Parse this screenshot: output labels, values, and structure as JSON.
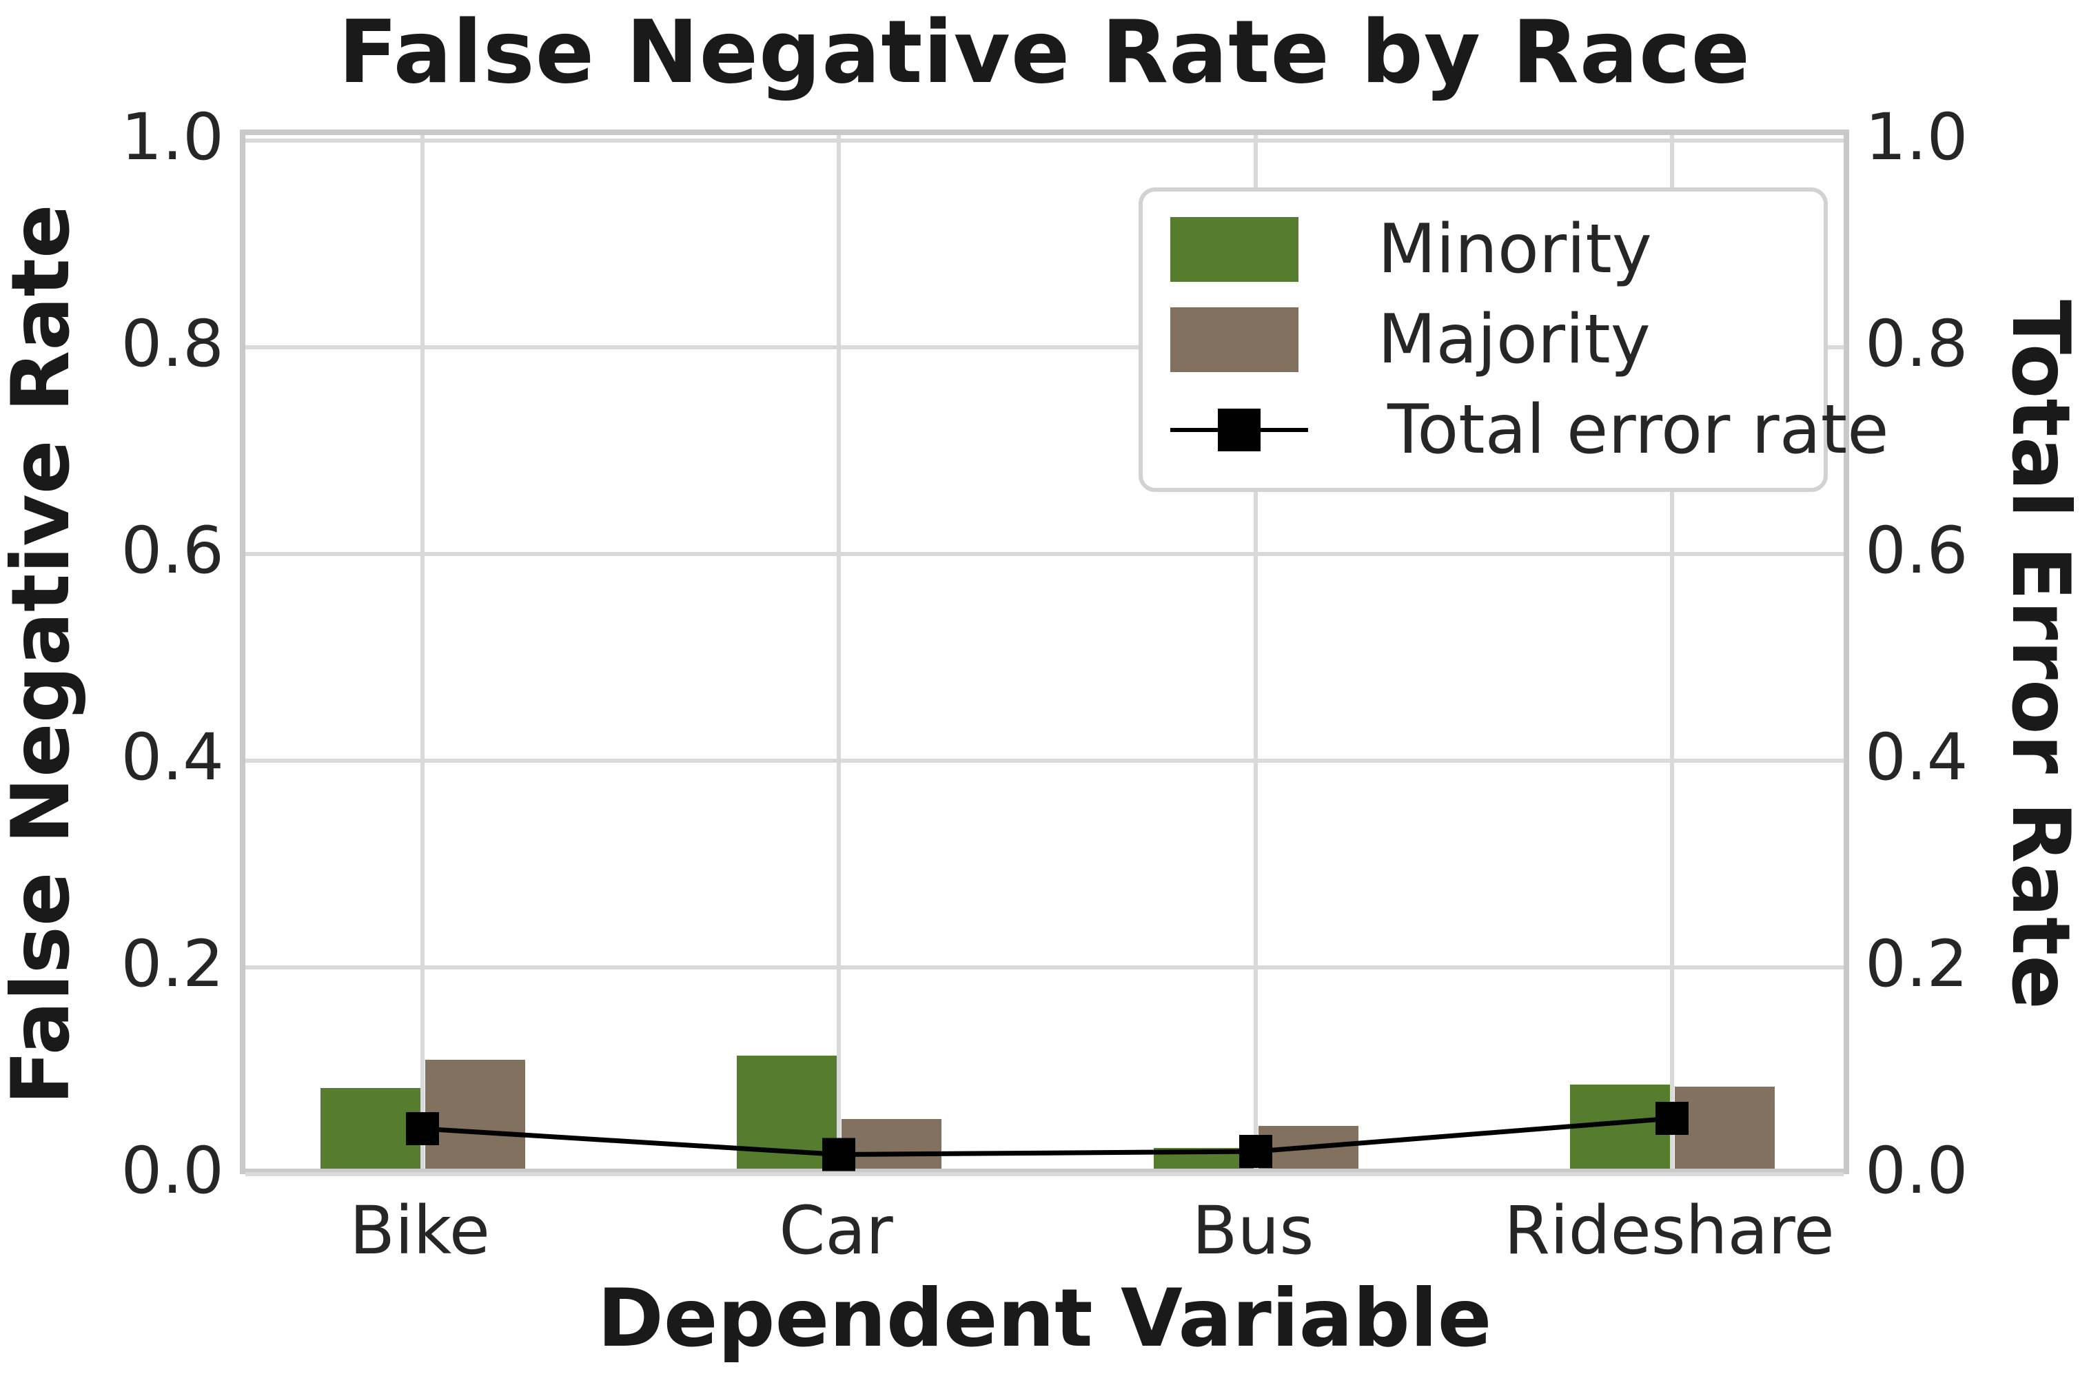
{
  "page": {
    "background": "#ffffff"
  },
  "chart_data": {
    "type": "bar",
    "title": "False Negative Rate by Race",
    "xlabel": "Dependent Variable",
    "ylabel_left": "False Negative Rate",
    "ylabel_right": "Total Error Rate",
    "categories": [
      "Bike",
      "Car",
      "Bus",
      "Rideshare"
    ],
    "series": [
      {
        "name": "Minority",
        "type": "bar",
        "axis": "left",
        "color": "#567d2d",
        "values": [
          0.078,
          0.109,
          0.02,
          0.081
        ]
      },
      {
        "name": "Majority",
        "type": "bar",
        "axis": "left",
        "color": "#82715f",
        "values": [
          0.105,
          0.048,
          0.041,
          0.079
        ]
      },
      {
        "name": "Total error rate",
        "type": "line",
        "axis": "right",
        "color": "#000000",
        "marker": "square",
        "values": [
          0.044,
          0.019,
          0.022,
          0.054
        ]
      }
    ],
    "y_ticks": [
      {
        "label": "0.0",
        "value": 0.0
      },
      {
        "label": "0.2",
        "value": 0.2
      },
      {
        "label": "0.4",
        "value": 0.4
      },
      {
        "label": "0.6",
        "value": 0.6
      },
      {
        "label": "0.8",
        "value": 0.8
      },
      {
        "label": "1.0",
        "value": 1.0
      }
    ],
    "ylim": [
      0.0,
      1.0
    ],
    "grid": true,
    "legend_position": "upper right",
    "colors": {
      "grid": "#d9d9d9",
      "frame": "#c9c9c9",
      "tick_text": "#262626",
      "title_text": "#1a1a1a"
    }
  }
}
